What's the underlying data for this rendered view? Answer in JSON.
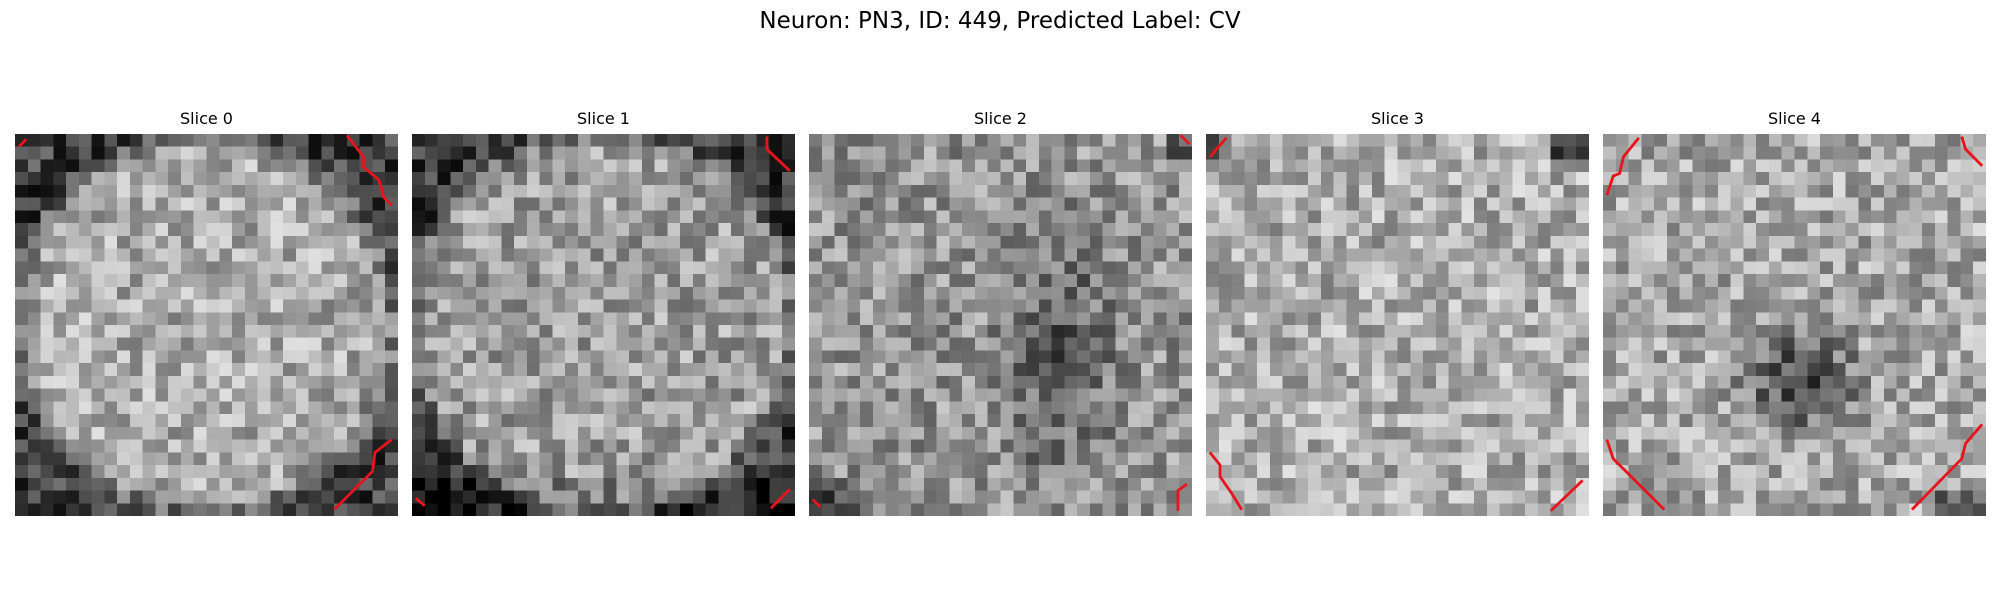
{
  "figure": {
    "title": "Neuron: PN3, ID: 449, Predicted Label: CV",
    "colormap": "gray",
    "contour_color": "#e8141c",
    "grid_size": 30,
    "slices": [
      {
        "label": "Slice 0",
        "profile": "ring",
        "seed": 11
      },
      {
        "label": "Slice 1",
        "profile": "ring-bottom",
        "seed": 23
      },
      {
        "label": "Slice 2",
        "profile": "dark-center-column",
        "seed": 37
      },
      {
        "label": "Slice 3",
        "profile": "bright",
        "seed": 51
      },
      {
        "label": "Slice 4",
        "profile": "dark-center",
        "seed": 67
      }
    ]
  }
}
